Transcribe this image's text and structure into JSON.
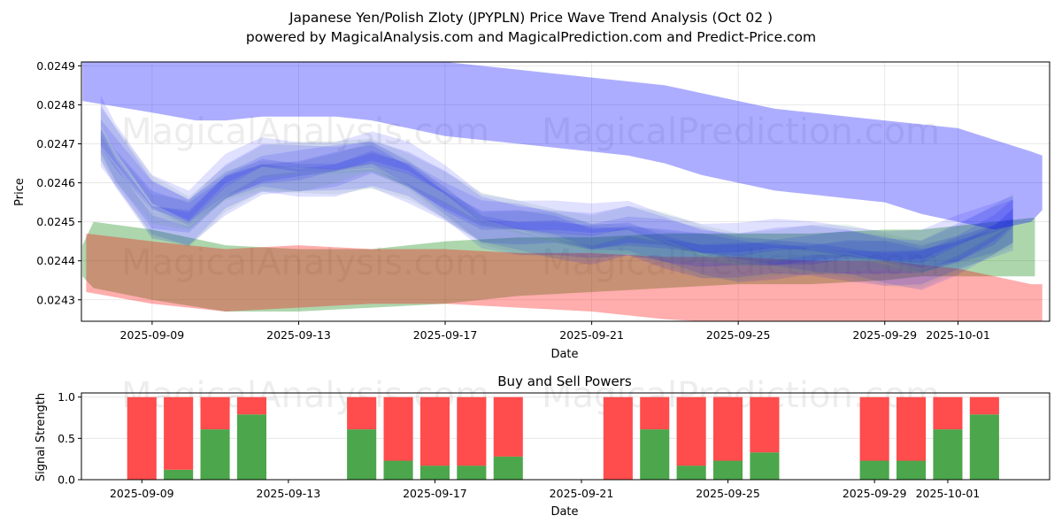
{
  "chart_data": [
    {
      "type": "area",
      "title": "Japanese Yen/Polish Zloty (JPYPLN) Price Wave Trend Analysis (Oct 02 )",
      "subtitle": "powered by MagicalAnalysis.com and MagicalPrediction.com and Predict-Price.com",
      "xlabel": "Date",
      "ylabel": "Price",
      "ylim": [
        0.024245,
        0.02491
      ],
      "xlim": [
        "2025-09-07",
        "2025-10-03"
      ],
      "grid": true,
      "y_ticks": [
        "0.0243",
        "0.0244",
        "0.0245",
        "0.0246",
        "0.0247",
        "0.0248",
        "0.0249"
      ],
      "x_ticks": [
        "2025-09-09",
        "2025-09-13",
        "2025-09-17",
        "2025-09-21",
        "2025-09-25",
        "2025-09-29",
        "2025-10-01"
      ],
      "watermarks": [
        "MagicalAnalysis.com",
        "MagicalPrediction.com"
      ],
      "bands": [
        {
          "name": "upper-trend-band",
          "color": "#0000ff",
          "opacity": 0.32,
          "x": [
            -1.9,
            0,
            1.2,
            2,
            3,
            4,
            5,
            6,
            7,
            8,
            9,
            10,
            11,
            12,
            13,
            14,
            15,
            16,
            17,
            18,
            19,
            20,
            21,
            22,
            23,
            24,
            24.3
          ],
          "upper": [
            0.02491,
            0.02491,
            0.02491,
            0.02491,
            0.02491,
            0.02491,
            0.02491,
            0.02491,
            0.02491,
            0.02491,
            0.0249,
            0.02489,
            0.02488,
            0.02487,
            0.02486,
            0.02485,
            0.02483,
            0.02481,
            0.02479,
            0.02478,
            0.02477,
            0.02476,
            0.02475,
            0.02474,
            0.02471,
            0.02468,
            0.02467
          ],
          "lower": [
            0.02481,
            0.02478,
            0.02476,
            0.02476,
            0.02477,
            0.02477,
            0.02477,
            0.02476,
            0.02474,
            0.02472,
            0.02471,
            0.0247,
            0.02469,
            0.02468,
            0.02467,
            0.02465,
            0.02462,
            0.0246,
            0.02458,
            0.02457,
            0.02456,
            0.02455,
            0.02452,
            0.0245,
            0.02448,
            0.0245,
            0.02453
          ]
        },
        {
          "name": "green-band",
          "color": "#008000",
          "opacity": 0.32,
          "x": [
            -1.9,
            -1.6,
            0,
            2,
            4,
            6,
            8,
            10,
            12,
            14,
            16,
            18,
            20,
            21,
            22,
            23,
            24,
            24.1
          ],
          "upper": [
            0.02444,
            0.0245,
            0.02448,
            0.02444,
            0.02443,
            0.02443,
            0.02445,
            0.02446,
            0.02446,
            0.02447,
            0.02447,
            0.02447,
            0.02448,
            0.02448,
            0.02449,
            0.0245,
            0.02451,
            0.02451
          ],
          "lower": [
            0.02436,
            0.02433,
            0.0243,
            0.02427,
            0.02427,
            0.02428,
            0.02429,
            0.02431,
            0.02432,
            0.02433,
            0.02434,
            0.02434,
            0.02435,
            0.02436,
            0.02436,
            0.02436,
            0.02436,
            0.02436
          ]
        },
        {
          "name": "red-band",
          "color": "#ff0000",
          "opacity": 0.32,
          "x": [
            -1.8,
            0,
            2,
            4,
            6,
            8,
            10,
            12,
            14,
            16,
            18,
            20,
            21,
            22,
            23,
            24,
            24.3
          ],
          "upper": [
            0.02447,
            0.02445,
            0.02443,
            0.02444,
            0.02443,
            0.02443,
            0.02442,
            0.02442,
            0.02441,
            0.02441,
            0.0244,
            0.0244,
            0.02439,
            0.02438,
            0.02436,
            0.02434,
            0.02434
          ],
          "lower": [
            0.02432,
            0.02429,
            0.02427,
            0.02428,
            0.02429,
            0.02429,
            0.02428,
            0.02427,
            0.02425,
            0.02424,
            0.02424,
            0.02424,
            0.02424,
            0.02424,
            0.02424,
            0.02424,
            0.02424
          ]
        }
      ],
      "wave_bands": {
        "color_primary": "#0000ff",
        "color_secondary": "#4f9a6f",
        "opacity": 0.12,
        "x": [
          -1.4,
          -1,
          0,
          1,
          2,
          3,
          4,
          5,
          6,
          7,
          8,
          9,
          10,
          11,
          12,
          13,
          14,
          15,
          16,
          17,
          18,
          19,
          20,
          21,
          22,
          23,
          23.5
        ],
        "center": [
          0.02472,
          0.02466,
          0.02454,
          0.02451,
          0.02459,
          0.02463,
          0.02463,
          0.02464,
          0.02466,
          0.02462,
          0.02456,
          0.0245,
          0.02449,
          0.02448,
          0.02446,
          0.02447,
          0.02445,
          0.02443,
          0.02442,
          0.02442,
          0.02442,
          0.02442,
          0.02441,
          0.0244,
          0.02443,
          0.02447,
          0.0245
        ],
        "layers": 10,
        "spread": 7e-05
      }
    },
    {
      "type": "bar",
      "title": "Buy and Sell Powers",
      "xlabel": "Date",
      "ylabel": "Signal Strength",
      "ylim": [
        0,
        1.05
      ],
      "y_ticks": [
        "0.0",
        "0.5",
        "1.0"
      ],
      "x_ticks": [
        "2025-09-09",
        "2025-09-13",
        "2025-09-17",
        "2025-09-21",
        "2025-09-25",
        "2025-09-29",
        "2025-10-01"
      ],
      "grid": true,
      "categories": [
        "2025-09-09",
        "2025-09-10",
        "2025-09-11",
        "2025-09-12",
        "2025-09-15",
        "2025-09-16",
        "2025-09-17",
        "2025-09-18",
        "2025-09-19",
        "2025-09-22",
        "2025-09-23",
        "2025-09-24",
        "2025-09-25",
        "2025-09-26",
        "2025-09-29",
        "2025-09-30",
        "2025-10-01",
        "2025-10-02"
      ],
      "series": [
        {
          "name": "Buy",
          "color": "#4ca64c",
          "values": [
            0.0,
            0.12,
            0.61,
            0.79,
            0.61,
            0.23,
            0.17,
            0.17,
            0.28,
            0.0,
            0.61,
            0.17,
            0.23,
            0.33,
            0.23,
            0.23,
            0.61,
            0.79
          ]
        },
        {
          "name": "Sell",
          "color": "#ff4c4c",
          "values": [
            1.0,
            0.88,
            0.39,
            0.21,
            0.39,
            0.77,
            0.83,
            0.83,
            0.72,
            1.0,
            0.39,
            0.83,
            0.77,
            0.67,
            0.77,
            0.77,
            0.39,
            0.21
          ]
        }
      ],
      "watermarks": [
        "MagicalAnalysis.com",
        "MagicalPrediction.com"
      ]
    }
  ]
}
